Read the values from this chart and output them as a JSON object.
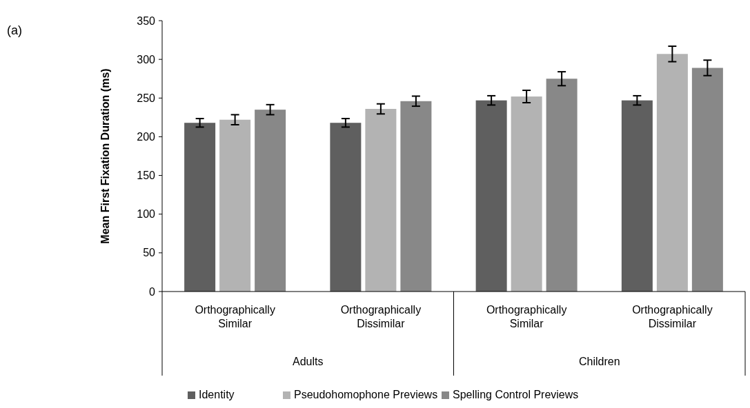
{
  "chart_data": {
    "type": "bar",
    "ylabel": "Mean First Fixation Duration (ms)",
    "categories": [
      "Orthographically Similar",
      "Orthographically Dissimilar",
      "Orthographically Similar",
      "Orthographically Dissimilar"
    ],
    "series": [
      {
        "name": "Identity",
        "color": "#5f5f5f",
        "values": [
          218,
          218,
          247,
          247
        ],
        "errors": [
          5.5,
          5.5,
          6,
          6
        ]
      },
      {
        "name": "Pseudohomophone Previews",
        "color": "#b3b3b3",
        "values": [
          222,
          236,
          252,
          307
        ],
        "errors": [
          6.5,
          6.5,
          8,
          10
        ]
      },
      {
        "name": "Spelling Control Previews",
        "color": "#888888",
        "values": [
          235,
          246,
          275,
          289
        ],
        "errors": [
          6.5,
          6.5,
          9,
          10
        ]
      }
    ],
    "ylim": [
      0,
      350
    ],
    "yticks": [
      0,
      50,
      100,
      150,
      200,
      250,
      300,
      350
    ],
    "annotations": [
      "(a)",
      "Adults",
      "Children"
    ],
    "legend": "bottom",
    "grid": false
  }
}
